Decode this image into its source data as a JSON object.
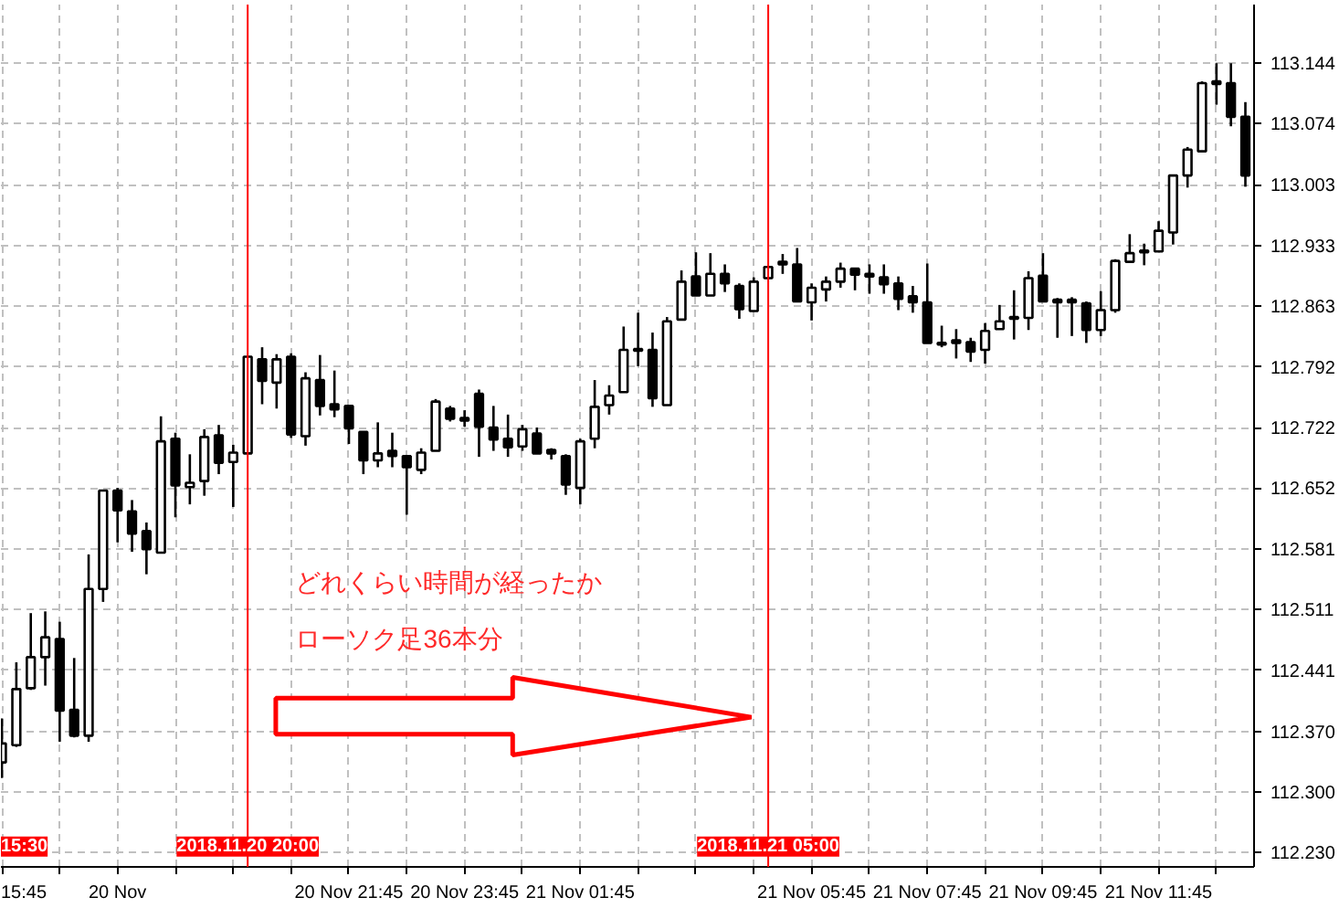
{
  "chart_data": {
    "type": "candlestick",
    "color": "#000000",
    "x": [
      "2018-11-20T15:45",
      "2018-11-20T16:00",
      "2018-11-20T16:15",
      "2018-11-20T16:30",
      "2018-11-20T16:45",
      "2018-11-20T17:00",
      "2018-11-20T17:15",
      "2018-11-20T17:30",
      "2018-11-20T17:45",
      "2018-11-20T18:00",
      "2018-11-20T18:15",
      "2018-11-20T18:30",
      "2018-11-20T18:45",
      "2018-11-20T19:00",
      "2018-11-20T19:15",
      "2018-11-20T19:30",
      "2018-11-20T19:45",
      "2018-11-20T20:00",
      "2018-11-20T20:15",
      "2018-11-20T20:30",
      "2018-11-20T20:45",
      "2018-11-20T21:00",
      "2018-11-20T21:15",
      "2018-11-20T21:30",
      "2018-11-20T21:45",
      "2018-11-20T22:00",
      "2018-11-20T22:15",
      "2018-11-20T22:30",
      "2018-11-20T22:45",
      "2018-11-20T23:00",
      "2018-11-20T23:15",
      "2018-11-20T23:30",
      "2018-11-20T23:45",
      "2018-11-21T00:00",
      "2018-11-21T00:15",
      "2018-11-21T00:30",
      "2018-11-21T00:45",
      "2018-11-21T01:00",
      "2018-11-21T01:15",
      "2018-11-21T01:30",
      "2018-11-21T01:45",
      "2018-11-21T02:00",
      "2018-11-21T02:15",
      "2018-11-21T02:30",
      "2018-11-21T02:45",
      "2018-11-21T03:00",
      "2018-11-21T03:15",
      "2018-11-21T03:30",
      "2018-11-21T03:45",
      "2018-11-21T04:00",
      "2018-11-21T04:15",
      "2018-11-21T04:30",
      "2018-11-21T04:45",
      "2018-11-21T05:00",
      "2018-11-21T05:15",
      "2018-11-21T05:30",
      "2018-11-21T05:45",
      "2018-11-21T06:00",
      "2018-11-21T06:15",
      "2018-11-21T06:30",
      "2018-11-21T06:45",
      "2018-11-21T07:00",
      "2018-11-21T07:15",
      "2018-11-21T07:30",
      "2018-11-21T07:45",
      "2018-11-21T08:00",
      "2018-11-21T08:15",
      "2018-11-21T08:30",
      "2018-11-21T08:45",
      "2018-11-21T09:00",
      "2018-11-21T09:15",
      "2018-11-21T09:30",
      "2018-11-21T09:45",
      "2018-11-21T10:00",
      "2018-11-21T10:15",
      "2018-11-21T10:30",
      "2018-11-21T10:45",
      "2018-11-21T11:00",
      "2018-11-21T11:15",
      "2018-11-21T11:30",
      "2018-11-21T11:45",
      "2018-11-21T12:00",
      "2018-11-21T12:15",
      "2018-11-21T12:30",
      "2018-11-21T12:45",
      "2018-11-21T13:00",
      "2018-11-21T13:15"
    ],
    "ohlc": [
      [
        112.334,
        112.385,
        112.316,
        112.356
      ],
      [
        112.354,
        112.45,
        112.352,
        112.419
      ],
      [
        112.42,
        112.507,
        112.418,
        112.456
      ],
      [
        112.456,
        112.509,
        112.423,
        112.479
      ],
      [
        112.477,
        112.497,
        112.358,
        112.394
      ],
      [
        112.395,
        112.455,
        112.363,
        112.365
      ],
      [
        112.365,
        112.575,
        112.358,
        112.535
      ],
      [
        112.535,
        112.649,
        112.52,
        112.649
      ],
      [
        112.649,
        112.652,
        112.589,
        112.626
      ],
      [
        112.625,
        112.638,
        112.578,
        112.599
      ],
      [
        112.602,
        112.612,
        112.552,
        112.581
      ],
      [
        112.577,
        112.735,
        112.577,
        112.706
      ],
      [
        112.709,
        112.716,
        112.618,
        112.655
      ],
      [
        112.653,
        112.691,
        112.633,
        112.658
      ],
      [
        112.66,
        112.72,
        112.643,
        112.711
      ],
      [
        112.713,
        112.725,
        112.668,
        112.681
      ],
      [
        112.682,
        112.702,
        112.63,
        112.693
      ],
      [
        112.692,
        112.804,
        112.692,
        112.804
      ],
      [
        112.801,
        112.815,
        112.749,
        112.776
      ],
      [
        112.774,
        112.807,
        112.744,
        112.801
      ],
      [
        112.804,
        112.808,
        112.71,
        112.714
      ],
      [
        112.712,
        112.786,
        112.701,
        112.779
      ],
      [
        112.777,
        112.806,
        112.736,
        112.747
      ],
      [
        112.749,
        112.788,
        112.734,
        112.743
      ],
      [
        112.747,
        112.747,
        112.703,
        112.721
      ],
      [
        112.717,
        112.717,
        112.668,
        112.684
      ],
      [
        112.684,
        112.728,
        112.676,
        112.692
      ],
      [
        112.695,
        112.716,
        112.676,
        112.689
      ],
      [
        112.689,
        112.689,
        112.621,
        112.676
      ],
      [
        112.673,
        112.698,
        112.668,
        112.693
      ],
      [
        112.695,
        112.755,
        112.695,
        112.752
      ],
      [
        112.744,
        112.747,
        112.729,
        112.732
      ],
      [
        112.733,
        112.742,
        112.723,
        112.73
      ],
      [
        112.761,
        112.766,
        112.688,
        112.723
      ],
      [
        112.722,
        112.747,
        112.695,
        112.708
      ],
      [
        112.709,
        112.737,
        112.688,
        112.699
      ],
      [
        112.7,
        112.725,
        112.695,
        112.72
      ],
      [
        112.715,
        112.722,
        112.692,
        112.692
      ],
      [
        112.696,
        112.698,
        112.685,
        112.692
      ],
      [
        112.689,
        112.691,
        112.644,
        112.656
      ],
      [
        112.652,
        112.709,
        112.633,
        112.706
      ],
      [
        112.709,
        112.777,
        112.698,
        112.746
      ],
      [
        112.748,
        112.771,
        112.737,
        112.759
      ],
      [
        112.763,
        112.839,
        112.763,
        112.812
      ],
      [
        112.813,
        112.855,
        112.793,
        112.811
      ],
      [
        112.812,
        112.832,
        112.746,
        112.756
      ],
      [
        112.748,
        112.85,
        112.748,
        112.845
      ],
      [
        112.847,
        112.904,
        112.847,
        112.891
      ],
      [
        112.897,
        112.925,
        112.875,
        112.875
      ],
      [
        112.875,
        112.924,
        112.875,
        112.9
      ],
      [
        112.9,
        112.911,
        112.879,
        112.889
      ],
      [
        112.886,
        112.889,
        112.848,
        112.859
      ],
      [
        112.857,
        112.896,
        112.857,
        112.891
      ],
      [
        112.895,
        112.908,
        112.895,
        112.908
      ],
      [
        112.914,
        112.923,
        112.9,
        112.911
      ],
      [
        112.911,
        112.93,
        112.868,
        112.868
      ],
      [
        112.867,
        112.889,
        112.846,
        112.884
      ],
      [
        112.882,
        112.897,
        112.868,
        112.891
      ],
      [
        112.891,
        112.913,
        112.884,
        112.906
      ],
      [
        112.906,
        112.906,
        112.881,
        112.899
      ],
      [
        112.9,
        112.911,
        112.877,
        112.897
      ],
      [
        112.896,
        112.911,
        112.877,
        112.888
      ],
      [
        112.889,
        112.897,
        112.858,
        112.871
      ],
      [
        112.874,
        112.886,
        112.855,
        112.867
      ],
      [
        112.867,
        112.912,
        112.82,
        112.82
      ],
      [
        112.82,
        112.84,
        112.815,
        112.818
      ],
      [
        112.823,
        112.836,
        112.802,
        112.82
      ],
      [
        112.821,
        112.826,
        112.798,
        112.81
      ],
      [
        112.812,
        112.843,
        112.796,
        112.834
      ],
      [
        112.836,
        112.864,
        112.836,
        112.845
      ],
      [
        112.85,
        112.881,
        112.824,
        112.848
      ],
      [
        112.849,
        112.903,
        112.835,
        112.895
      ],
      [
        112.898,
        112.924,
        112.867,
        112.868
      ],
      [
        112.87,
        112.872,
        112.826,
        112.867
      ],
      [
        112.87,
        112.873,
        112.828,
        112.867
      ],
      [
        112.866,
        112.868,
        112.82,
        112.835
      ],
      [
        112.835,
        112.88,
        112.828,
        112.858
      ],
      [
        112.858,
        112.917,
        112.855,
        112.915
      ],
      [
        112.914,
        112.946,
        112.914,
        112.924
      ],
      [
        112.927,
        112.935,
        112.91,
        112.925
      ],
      [
        112.926,
        112.961,
        112.926,
        112.95
      ],
      [
        112.948,
        113.014,
        112.934,
        113.014
      ],
      [
        113.014,
        113.047,
        113.0,
        113.044
      ],
      [
        113.042,
        113.123,
        113.042,
        113.121
      ],
      [
        113.123,
        113.144,
        113.096,
        113.12
      ],
      [
        113.121,
        113.144,
        113.071,
        113.082
      ],
      [
        113.082,
        113.099,
        113.001,
        113.014
      ]
    ],
    "xlim": [
      "2018-11-20T15:44",
      "2018-11-21T13:24"
    ],
    "xticks": [
      {
        "value": "2018-11-20T15:45",
        "label": "15:45"
      },
      {
        "value": "2018-11-20T16:45",
        "label": null
      },
      {
        "value": "2018-11-20T17:45",
        "label": "20 Nov"
      },
      {
        "value": "2018-11-20T18:45",
        "label": null
      },
      {
        "value": "2018-11-20T19:45",
        "label": null
      },
      {
        "value": "2018-11-20T20:45",
        "label": null
      },
      {
        "value": "2018-11-20T21:45",
        "label": "20 Nov 21:45"
      },
      {
        "value": "2018-11-20T22:45",
        "label": null
      },
      {
        "value": "2018-11-20T23:45",
        "label": "20 Nov 23:45"
      },
      {
        "value": "2018-11-21T00:45",
        "label": null
      },
      {
        "value": "2018-11-21T01:45",
        "label": "21 Nov 01:45"
      },
      {
        "value": "2018-11-21T02:45",
        "label": null
      },
      {
        "value": "2018-11-21T03:45",
        "label": null
      },
      {
        "value": "2018-11-21T04:45",
        "label": null
      },
      {
        "value": "2018-11-21T05:45",
        "label": "21 Nov 05:45"
      },
      {
        "value": "2018-11-21T06:45",
        "label": null
      },
      {
        "value": "2018-11-21T07:45",
        "label": "21 Nov 07:45"
      },
      {
        "value": "2018-11-21T08:45",
        "label": null
      },
      {
        "value": "2018-11-21T09:45",
        "label": "21 Nov 09:45"
      },
      {
        "value": "2018-11-21T10:45",
        "label": null
      },
      {
        "value": "2018-11-21T11:45",
        "label": "21 Nov 11:45"
      },
      {
        "value": "2018-11-21T12:45",
        "label": null
      }
    ],
    "ylim": [
      112.213,
      113.212
    ],
    "yticks": [
      {
        "value": 112.23,
        "label": "112.230"
      },
      {
        "value": 112.3,
        "label": "112.300"
      },
      {
        "value": 112.37,
        "label": "112.370"
      },
      112.441,
      112.511,
      112.581,
      112.652,
      112.722,
      112.792,
      112.863,
      112.933,
      113.003,
      113.074,
      113.144
    ],
    "grid": true,
    "ref_lines": [
      {
        "axis": "x",
        "value": "2018-11-20T20:00",
        "label": "2018.11.20 20:00",
        "color": "#ff0000"
      },
      {
        "axis": "x",
        "value": "2018-11-21T05:00",
        "label": "2018.11.21 05:00",
        "color": "#ff0000"
      }
    ],
    "annotations": [
      "15:30",
      "どれくらい時間が経ったか",
      "ローソク足36本分"
    ]
  }
}
